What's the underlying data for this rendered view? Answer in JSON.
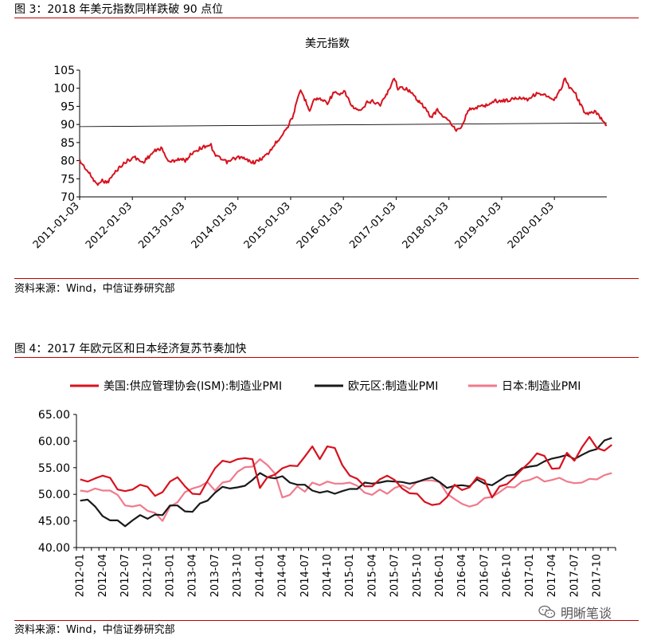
{
  "figure1": {
    "title": "图 3：2018 年美元指数同样跌破 90 点位",
    "source": "资料来源：Wind，中信证券研究部"
  },
  "figure2": {
    "title": "图 4：2017 年欧元区和日本经济复苏节奏加快",
    "source": "资料来源：Wind，中信证券研究部"
  },
  "watermark": "明晰笔谈",
  "colors": {
    "red": "#d7121e",
    "black": "#1a1a1a",
    "pink": "#f07a8c",
    "rule": "#c00000"
  },
  "chart_data": [
    {
      "type": "line",
      "title": "美元指数",
      "xlabel": "",
      "ylabel": "",
      "x_tick_labels": [
        "2011-01-03",
        "2012-01-03",
        "2013-01-03",
        "2014-01-03",
        "2015-01-03",
        "2016-01-03",
        "2017-01-03",
        "2018-01-03",
        "2019-01-03",
        "2020-01-03"
      ],
      "ylim": [
        70,
        105
      ],
      "y_ticks": [
        70,
        75,
        80,
        85,
        90,
        95,
        100,
        105
      ],
      "grid": false,
      "reference_line": {
        "from": [
          "2011-01-03",
          89.4
        ],
        "to": [
          "2020-12-31",
          90.4
        ]
      },
      "series": [
        {
          "color": "#d7121e",
          "x": [
            "2011-01-03",
            "2011-03-01",
            "2011-05-01",
            "2011-06-01",
            "2011-07-15",
            "2011-09-01",
            "2011-10-01",
            "2011-12-01",
            "2012-01-15",
            "2012-03-15",
            "2012-06-01",
            "2012-07-20",
            "2012-09-15",
            "2012-11-15",
            "2013-01-03",
            "2013-03-01",
            "2013-05-20",
            "2013-07-01",
            "2013-07-10",
            "2013-09-01",
            "2013-10-25",
            "2013-12-01",
            "2014-01-15",
            "2014-03-15",
            "2014-05-01",
            "2014-07-01",
            "2014-08-01",
            "2014-09-15",
            "2014-11-01",
            "2014-12-15",
            "2015-01-15",
            "2015-03-13",
            "2015-05-15",
            "2015-06-15",
            "2015-08-01",
            "2015-09-15",
            "2015-11-01",
            "2015-12-01",
            "2016-01-15",
            "2016-03-01",
            "2016-05-01",
            "2016-06-15",
            "2016-07-15",
            "2016-09-15",
            "2016-11-01",
            "2016-12-20",
            "2017-01-15",
            "2017-03-15",
            "2017-05-15",
            "2017-07-01",
            "2017-09-01",
            "2017-10-15",
            "2017-12-01",
            "2018-01-15",
            "2018-02-15",
            "2018-04-01",
            "2018-05-15",
            "2018-07-01",
            "2018-08-15",
            "2018-10-01",
            "2018-11-15",
            "2019-01-03",
            "2019-03-01",
            "2019-05-15",
            "2019-07-01",
            "2019-09-01",
            "2019-10-01",
            "2019-11-01",
            "2019-12-31",
            "2020-02-01",
            "2020-03-19",
            "2020-04-15",
            "2020-05-15",
            "2020-06-15",
            "2020-08-01",
            "2020-09-01",
            "2020-10-15",
            "2020-11-15",
            "2020-12-31"
          ],
          "values": [
            80,
            77,
            73.5,
            74.5,
            74,
            76.5,
            78,
            80,
            81,
            79.5,
            82.5,
            83.5,
            79.5,
            80.5,
            80,
            82.5,
            84,
            84.5,
            82.5,
            80.5,
            79.5,
            80.5,
            81,
            80,
            79.5,
            81,
            82,
            84.5,
            87,
            89.5,
            92,
            99.5,
            94,
            97,
            97,
            96,
            99,
            98,
            99,
            95,
            93.5,
            96,
            96.5,
            95.5,
            98.5,
            103,
            100,
            100,
            97.5,
            95.5,
            92,
            94,
            92,
            90.5,
            88.5,
            89.5,
            94,
            94.5,
            95,
            95.5,
            96.5,
            96.5,
            96.8,
            97.5,
            97,
            98.5,
            98.5,
            98,
            96.5,
            98.5,
            102.8,
            100,
            99.5,
            97,
            93,
            93,
            93.5,
            92,
            89.8
          ]
        }
      ]
    },
    {
      "type": "line",
      "title": "",
      "xlabel": "",
      "ylabel": "",
      "ylim": [
        40,
        65
      ],
      "y_ticks": [
        40.0,
        45.0,
        50.0,
        55.0,
        60.0,
        65.0
      ],
      "grid": false,
      "legend_position": "top",
      "x": [
        "2012-01",
        "2012-02",
        "2012-03",
        "2012-04",
        "2012-05",
        "2012-06",
        "2012-07",
        "2012-08",
        "2012-09",
        "2012-10",
        "2012-11",
        "2012-12",
        "2013-01",
        "2013-02",
        "2013-03",
        "2013-04",
        "2013-05",
        "2013-06",
        "2013-07",
        "2013-08",
        "2013-09",
        "2013-10",
        "2013-11",
        "2013-12",
        "2014-01",
        "2014-02",
        "2014-03",
        "2014-04",
        "2014-05",
        "2014-06",
        "2014-07",
        "2014-08",
        "2014-09",
        "2014-10",
        "2014-11",
        "2014-12",
        "2015-01",
        "2015-02",
        "2015-03",
        "2015-04",
        "2015-05",
        "2015-06",
        "2015-07",
        "2015-08",
        "2015-09",
        "2015-10",
        "2015-11",
        "2015-12",
        "2016-01",
        "2016-02",
        "2016-03",
        "2016-04",
        "2016-05",
        "2016-06",
        "2016-07",
        "2016-08",
        "2016-09",
        "2016-10",
        "2016-11",
        "2016-12",
        "2017-01",
        "2017-02",
        "2017-03",
        "2017-04",
        "2017-05",
        "2017-06",
        "2017-07",
        "2017-08",
        "2017-09",
        "2017-10",
        "2017-11",
        "2017-12"
      ],
      "x_tick_labels": [
        "2012-01",
        "2012-04",
        "2012-07",
        "2012-10",
        "2013-01",
        "2013-04",
        "2013-07",
        "2013-10",
        "2014-01",
        "2014-04",
        "2014-07",
        "2014-10",
        "2015-01",
        "2015-04",
        "2015-07",
        "2015-10",
        "2016-01",
        "2016-04",
        "2016-07",
        "2016-10",
        "2017-01",
        "2017-04",
        "2017-07",
        "2017-10"
      ],
      "series": [
        {
          "name": "美国:供应管理协会(ISM):制造业PMI",
          "color": "#d7121e",
          "values": [
            52.8,
            52.4,
            53.0,
            53.5,
            53.1,
            50.9,
            50.6,
            50.9,
            51.8,
            51.4,
            49.7,
            50.4,
            52.4,
            53.2,
            51.5,
            50.1,
            50.0,
            52.5,
            54.9,
            56.3,
            56.0,
            56.6,
            56.8,
            56.6,
            51.2,
            53.2,
            53.7,
            54.9,
            55.4,
            55.3,
            57.1,
            59.0,
            56.6,
            59.0,
            58.7,
            55.5,
            53.5,
            52.9,
            51.5,
            51.5,
            52.8,
            53.5,
            52.7,
            51.1,
            50.2,
            50.1,
            48.6,
            48.0,
            48.2,
            49.5,
            51.8,
            50.8,
            51.3,
            53.2,
            52.6,
            49.4,
            51.5,
            51.9,
            53.2,
            54.7,
            56.0,
            57.7,
            57.2,
            54.8,
            54.9,
            57.8,
            56.3,
            58.8,
            60.8,
            58.7,
            58.2,
            59.3
          ]
        },
        {
          "name": "欧元区:制造业PMI",
          "color": "#1a1a1a",
          "values": [
            48.8,
            49.0,
            47.7,
            45.9,
            45.1,
            45.1,
            44.0,
            45.1,
            46.1,
            45.4,
            46.2,
            46.1,
            47.9,
            47.9,
            46.8,
            46.7,
            48.3,
            48.8,
            50.3,
            51.4,
            51.1,
            51.3,
            51.6,
            52.7,
            54.0,
            53.2,
            53.0,
            53.4,
            52.2,
            51.8,
            51.8,
            50.7,
            50.3,
            50.6,
            50.1,
            50.6,
            51.0,
            51.0,
            52.2,
            52.0,
            52.2,
            52.5,
            52.4,
            52.3,
            52.0,
            52.3,
            52.8,
            53.2,
            52.3,
            51.2,
            51.6,
            51.7,
            51.5,
            52.8,
            52.0,
            51.7,
            52.6,
            53.5,
            53.7,
            54.9,
            55.2,
            55.4,
            56.2,
            56.7,
            57.0,
            57.4,
            56.6,
            57.4,
            58.1,
            58.5,
            60.1,
            60.6
          ]
        },
        {
          "name": "日本:制造业PMI",
          "color": "#f07a8c",
          "values": [
            50.7,
            50.5,
            51.1,
            50.7,
            50.7,
            49.9,
            47.9,
            47.7,
            48.0,
            46.9,
            46.5,
            45.0,
            47.7,
            48.5,
            50.4,
            51.1,
            51.5,
            52.3,
            50.7,
            52.2,
            52.5,
            54.2,
            55.1,
            55.2,
            56.6,
            55.5,
            53.9,
            49.4,
            49.9,
            51.5,
            50.5,
            52.2,
            51.7,
            52.4,
            52.0,
            52.0,
            52.2,
            51.6,
            50.3,
            49.9,
            50.9,
            50.1,
            51.2,
            51.7,
            51.0,
            52.4,
            52.6,
            52.6,
            52.3,
            50.1,
            49.1,
            48.2,
            47.7,
            48.1,
            49.3,
            49.5,
            50.4,
            51.4,
            51.3,
            52.4,
            52.7,
            53.3,
            52.4,
            52.7,
            53.1,
            52.4,
            52.1,
            52.2,
            52.9,
            52.8,
            53.6,
            54.0
          ]
        }
      ]
    }
  ]
}
